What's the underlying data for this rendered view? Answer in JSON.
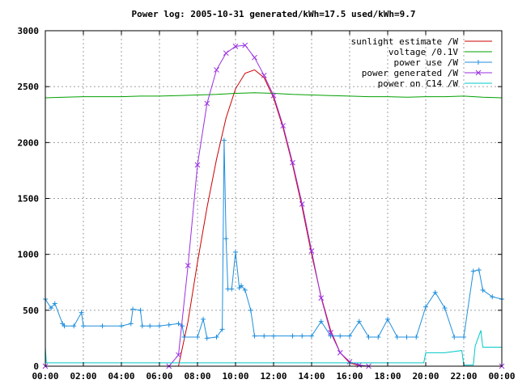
{
  "chart_data": {
    "type": "line",
    "title": "Power log: 2005-10-31 generated/kWh=17.5 used/kWh=9.7",
    "xlabel": "",
    "ylabel": "",
    "xlim": [
      0,
      24
    ],
    "ylim": [
      0,
      3000
    ],
    "grid": true,
    "legend_position": "top-right",
    "x_ticks": [
      "00:00",
      "02:00",
      "04:00",
      "06:00",
      "08:00",
      "10:00",
      "12:00",
      "14:00",
      "16:00",
      "18:00",
      "20:00",
      "22:00",
      "00:00"
    ],
    "x_tick_values": [
      0,
      2,
      4,
      6,
      8,
      10,
      12,
      14,
      16,
      18,
      20,
      22,
      24
    ],
    "y_ticks": [
      "0",
      "500",
      "1000",
      "1500",
      "2000",
      "2500",
      "3000"
    ],
    "y_tick_values": [
      0,
      500,
      1000,
      1500,
      2000,
      2500,
      3000
    ],
    "series": [
      {
        "name": "sunlight estimate /W",
        "color": "#cc0000",
        "marker": "none",
        "x": [
          7.0,
          7.5,
          8.0,
          8.5,
          9.0,
          9.5,
          10.0,
          10.5,
          11.0,
          11.5,
          12.0,
          12.5,
          13.0,
          13.5,
          14.0,
          14.5,
          15.0,
          15.5,
          16.0,
          16.5,
          17.0
        ],
        "y": [
          0,
          400,
          930,
          1420,
          1850,
          2220,
          2480,
          2620,
          2650,
          2580,
          2400,
          2130,
          1800,
          1420,
          1000,
          620,
          320,
          120,
          30,
          5,
          0
        ]
      },
      {
        "name": "voltage /0.1V",
        "color": "#00a000",
        "marker": "none",
        "x": [
          0,
          1,
          2,
          3,
          4,
          5,
          6,
          7,
          8,
          9,
          10,
          11,
          12,
          13,
          14,
          15,
          16,
          17,
          18,
          19,
          20,
          21,
          22,
          23,
          24
        ],
        "y": [
          2400,
          2405,
          2410,
          2410,
          2410,
          2415,
          2415,
          2420,
          2425,
          2430,
          2440,
          2445,
          2440,
          2430,
          2425,
          2420,
          2415,
          2410,
          2410,
          2405,
          2410,
          2410,
          2415,
          2405,
          2400
        ]
      },
      {
        "name": "power use /W",
        "color": "#1f8fdc",
        "marker": "plus",
        "x": [
          0,
          0.3,
          0.5,
          0.9,
          1.0,
          1.5,
          1.9,
          2.0,
          3.0,
          4.0,
          4.5,
          4.6,
          5.0,
          5.1,
          5.5,
          6.0,
          6.5,
          7.0,
          7.2,
          7.3,
          8.0,
          8.3,
          8.5,
          9.0,
          9.3,
          9.4,
          9.5,
          9.6,
          9.8,
          10.0,
          10.2,
          10.3,
          10.5,
          10.8,
          11.0,
          11.5,
          12.0,
          13.0,
          13.5,
          14.0,
          14.5,
          15.0,
          15.5,
          16.0,
          16.5,
          17.0,
          17.5,
          18.0,
          18.5,
          19.0,
          19.5,
          20.0,
          20.5,
          21.0,
          21.5,
          22.0,
          22.5,
          22.8,
          23.0,
          23.5,
          24.0
        ],
        "y": [
          600,
          520,
          560,
          380,
          360,
          360,
          480,
          360,
          360,
          360,
          380,
          510,
          500,
          360,
          360,
          360,
          370,
          380,
          360,
          260,
          260,
          420,
          250,
          260,
          330,
          2020,
          1140,
          690,
          690,
          1020,
          700,
          720,
          680,
          500,
          270,
          270,
          270,
          270,
          270,
          270,
          400,
          270,
          270,
          270,
          400,
          260,
          260,
          420,
          260,
          260,
          260,
          530,
          660,
          520,
          260,
          260,
          850,
          860,
          680,
          620,
          600
        ]
      },
      {
        "name": "power generated /W",
        "color": "#9a2fe0",
        "marker": "cross",
        "x": [
          0,
          6.5,
          7.0,
          7.5,
          8.0,
          8.5,
          9.0,
          9.5,
          10.0,
          10.5,
          11.0,
          11.5,
          12.0,
          12.5,
          13.0,
          13.5,
          14.0,
          14.5,
          15.0,
          15.5,
          16.0,
          16.5,
          17.0,
          24.0
        ],
        "y": [
          0,
          0,
          100,
          900,
          1800,
          2350,
          2650,
          2800,
          2860,
          2870,
          2760,
          2600,
          2420,
          2150,
          1820,
          1450,
          1030,
          610,
          300,
          120,
          40,
          10,
          0,
          0
        ]
      },
      {
        "name": "power on C14 /W",
        "color": "#00c8c8",
        "marker": "none",
        "x": [
          0,
          0.05,
          0.3,
          5,
          7,
          8,
          10,
          12,
          16,
          19.9,
          20,
          21,
          21.9,
          22,
          22.5,
          22.6,
          22.9,
          23,
          23.5,
          24
        ],
        "y": [
          170,
          30,
          30,
          30,
          30,
          30,
          30,
          30,
          30,
          30,
          120,
          120,
          140,
          10,
          10,
          180,
          320,
          170,
          170,
          170
        ]
      }
    ]
  }
}
